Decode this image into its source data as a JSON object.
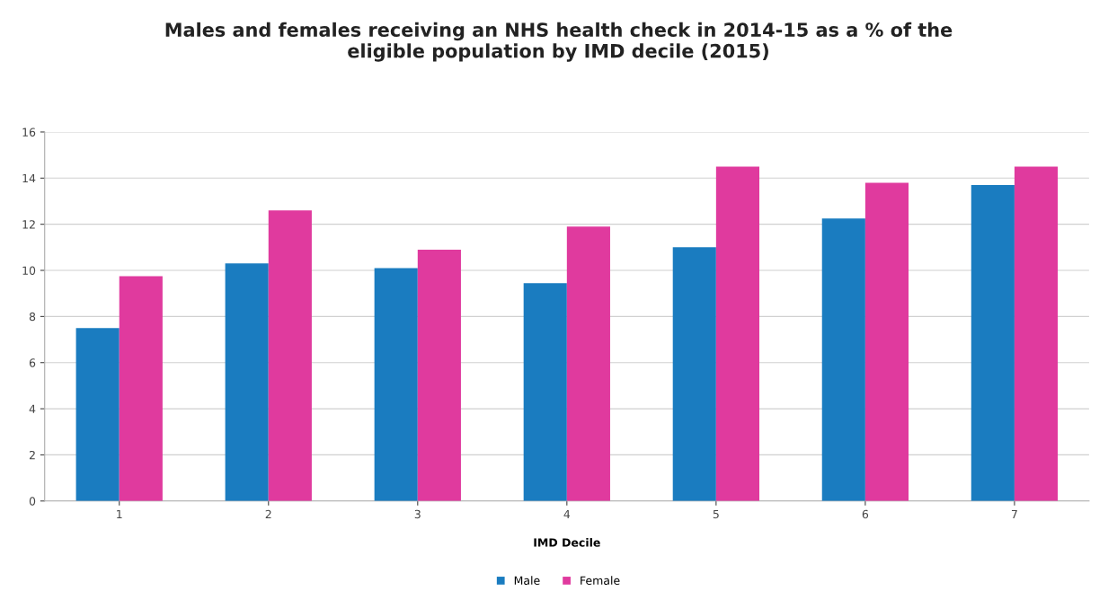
{
  "chart_data": {
    "type": "bar",
    "title": "Males and females receiving an NHS health check in 2014-15 as a % of the\neligible population by IMD decile (2015)",
    "xlabel": "IMD Decile",
    "categories": [
      "1",
      "2",
      "3",
      "4",
      "5",
      "6",
      "7"
    ],
    "series": [
      {
        "name": "Male",
        "color": "#1a7cc0",
        "values": [
          7.5,
          10.3,
          10.1,
          9.45,
          11.0,
          12.25,
          13.7
        ]
      },
      {
        "name": "Female",
        "color": "#e03a9e",
        "values": [
          9.75,
          12.6,
          10.9,
          11.9,
          14.5,
          13.8,
          14.5
        ]
      }
    ],
    "ylim": [
      0,
      16
    ],
    "yticks": [
      0,
      2,
      4,
      6,
      8,
      10,
      12,
      14,
      16
    ],
    "grid": "y",
    "legend": "bottom"
  }
}
